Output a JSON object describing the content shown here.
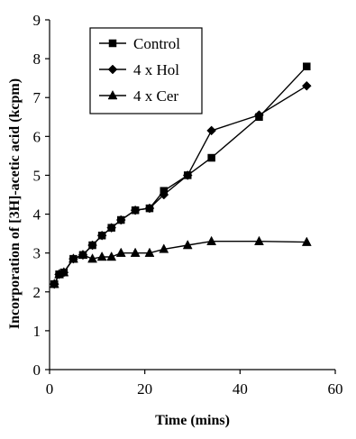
{
  "chart_data": {
    "type": "line",
    "title": "",
    "xlabel": "Time (mins)",
    "ylabel": "Incorporation of [3H]-acetic acid (kcpm)",
    "xlim": [
      0,
      60
    ],
    "ylim": [
      0,
      9
    ],
    "x_ticks": [
      0,
      20,
      40,
      60
    ],
    "y_ticks": [
      0,
      1,
      2,
      3,
      4,
      5,
      6,
      7,
      8,
      9
    ],
    "grid": false,
    "legend_position": "top-left",
    "series": [
      {
        "name": "Control",
        "marker": "square",
        "x": [
          1,
          2,
          3,
          5,
          7,
          9,
          11,
          13,
          15,
          18,
          21,
          24,
          29,
          34,
          44,
          54
        ],
        "y": [
          2.2,
          2.45,
          2.5,
          2.85,
          2.95,
          3.2,
          3.45,
          3.65,
          3.85,
          4.1,
          4.15,
          4.6,
          5.0,
          5.45,
          6.5,
          7.8
        ]
      },
      {
        "name": "4 x Hol",
        "marker": "diamond",
        "x": [
          1,
          2,
          3,
          5,
          7,
          9,
          11,
          13,
          15,
          18,
          21,
          24,
          29,
          34,
          44,
          54
        ],
        "y": [
          2.2,
          2.45,
          2.5,
          2.85,
          2.95,
          3.2,
          3.45,
          3.65,
          3.85,
          4.1,
          4.15,
          4.5,
          5.0,
          6.15,
          6.55,
          7.3
        ]
      },
      {
        "name": "4 x Cer",
        "marker": "triangle",
        "x": [
          1,
          2,
          3,
          5,
          7,
          9,
          11,
          13,
          15,
          18,
          21,
          24,
          29,
          34,
          44,
          54
        ],
        "y": [
          2.2,
          2.45,
          2.5,
          2.85,
          2.95,
          2.85,
          2.9,
          2.9,
          3.0,
          3.0,
          3.0,
          3.1,
          3.2,
          3.3,
          3.3,
          3.28
        ]
      }
    ]
  }
}
